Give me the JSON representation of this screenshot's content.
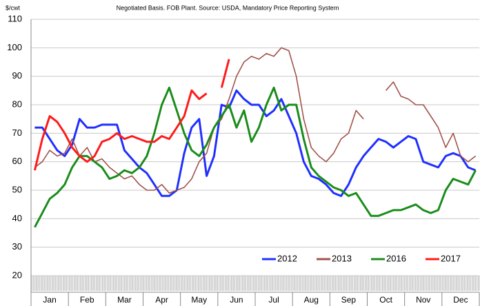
{
  "chart_data": {
    "type": "line",
    "unit_label": "$/cwt",
    "subtitle": "Negotiated Basis. FOB Plant.  Source: USDA, Mandatory Price Reporting System",
    "categories": [
      null,
      null,
      "Jan",
      null,
      null,
      null,
      null,
      "Feb",
      null,
      null,
      null,
      null,
      "Mar",
      null,
      null,
      null,
      null,
      "Apr",
      null,
      null,
      null,
      null,
      "May",
      null,
      null,
      null,
      null,
      "Jun",
      null,
      null,
      null,
      null,
      "Jul",
      null,
      null,
      null,
      null,
      "Aug",
      null,
      null,
      null,
      null,
      "Sep",
      null,
      null,
      null,
      null,
      "Oct",
      null,
      null,
      null,
      null,
      "Nov",
      null,
      null,
      null,
      null,
      "Dec",
      null,
      null
    ],
    "ylim": [
      20,
      110
    ],
    "yticks": [
      20,
      30,
      40,
      50,
      60,
      70,
      80,
      90,
      100,
      110
    ],
    "grid": true,
    "legend": "bottom-right",
    "series": [
      {
        "name": "2012",
        "color": "#1f2fff",
        "values": [
          72,
          72,
          68,
          64,
          62,
          66,
          75,
          72,
          72,
          73,
          73,
          73,
          64,
          61,
          58,
          56,
          52,
          48,
          48,
          50,
          63,
          72,
          75,
          55,
          62,
          80,
          79,
          85,
          82,
          80,
          80,
          76,
          78,
          82,
          76,
          70,
          60,
          55,
          54,
          52,
          49,
          48,
          52,
          58,
          62,
          65,
          68,
          67,
          65,
          67,
          69,
          68,
          60,
          59,
          58,
          62,
          63,
          62,
          58,
          57
        ]
      },
      {
        "name": "2013",
        "color": "#a0524a",
        "values": [
          58,
          60,
          64,
          62,
          63,
          68,
          62,
          65,
          60,
          61,
          58,
          56,
          54,
          55,
          52,
          50,
          50,
          52,
          49,
          50,
          51,
          54,
          60,
          63,
          72,
          75,
          82,
          90,
          95,
          97,
          96,
          98,
          97,
          100,
          99,
          90,
          75,
          65,
          62,
          60,
          63,
          68,
          70,
          78,
          75,
          null,
          null,
          85,
          88,
          83,
          82,
          80,
          80,
          76,
          72,
          65,
          70,
          62,
          60,
          62
        ]
      },
      {
        "name": "2016",
        "color": "#1a8c1a",
        "values": [
          37,
          42,
          47,
          49,
          52,
          58,
          62,
          62,
          60,
          58,
          54,
          55,
          57,
          56,
          58,
          62,
          70,
          80,
          86,
          78,
          70,
          64,
          62,
          66,
          72,
          76,
          80,
          72,
          78,
          67,
          72,
          80,
          86,
          78,
          80,
          80,
          68,
          58,
          55,
          53,
          51,
          50,
          48,
          49,
          45,
          41,
          41,
          42,
          43,
          43,
          44,
          45,
          43,
          42,
          43,
          50,
          54,
          53,
          52,
          57
        ]
      },
      {
        "name": "2017",
        "color": "#ff1a1a",
        "values": [
          57,
          68,
          76,
          74,
          70,
          65,
          62,
          60,
          62,
          67,
          68,
          70,
          68,
          69,
          68,
          67,
          67,
          69,
          68,
          72,
          76,
          85,
          82,
          84,
          null,
          86,
          96,
          null,
          null,
          null,
          null,
          null,
          null,
          null,
          null,
          null,
          null,
          null,
          null,
          null,
          null,
          null,
          null,
          null,
          null,
          null,
          null,
          null,
          null,
          null,
          null,
          null,
          null,
          null,
          null,
          null,
          null,
          null,
          null,
          null
        ]
      }
    ]
  }
}
